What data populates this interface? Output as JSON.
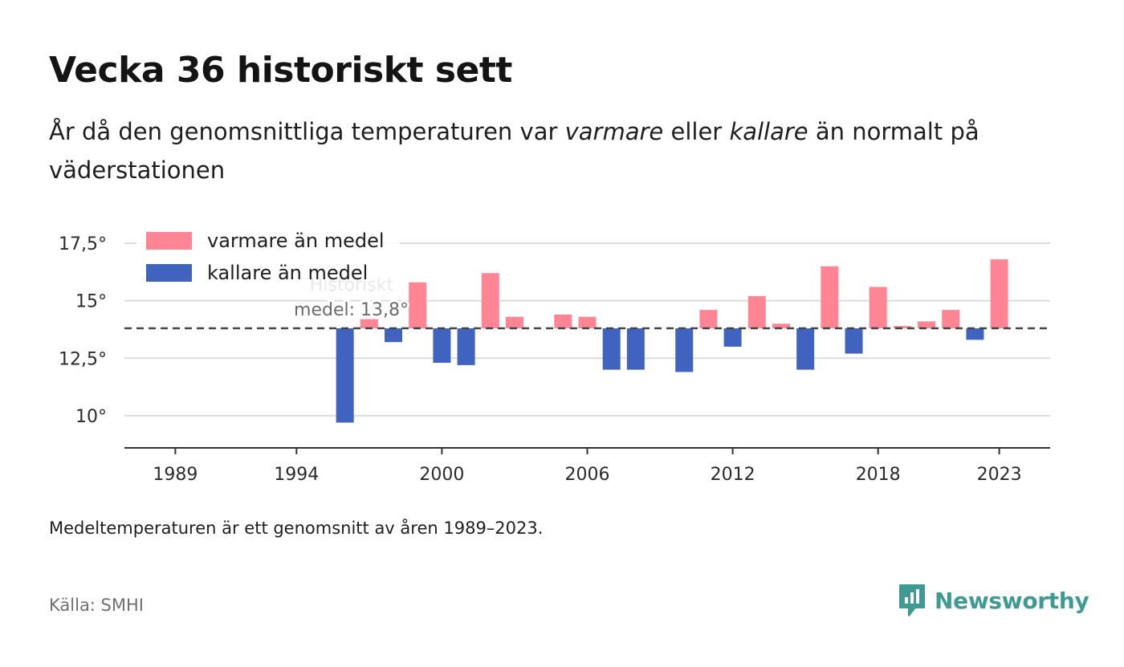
{
  "header": {
    "title": "Vecka 36 historiskt sett",
    "subtitle_pre": "År då den genomsnittliga temperaturen var ",
    "subtitle_warm": "varmare",
    "subtitle_mid": " eller ",
    "subtitle_cold": "kallare",
    "subtitle_post": " än normalt på väderstationen"
  },
  "footer": {
    "note": "Medeltemperaturen är ett genomsnitt av åren 1989–2023.",
    "source": "Källa: SMHI",
    "brand": "Newsworthy"
  },
  "colors": {
    "warm": "#ff8595",
    "cold": "#4163c0",
    "brand": "#3f9a94",
    "grid": "#dcdcdc",
    "axis": "#333333",
    "reference_line": "#444444"
  },
  "chart_data": {
    "type": "bar",
    "baseline": 13.8,
    "reference_line": {
      "value": 13.8,
      "label_line1": "Historiskt",
      "label_line2": "medel: 13,8°"
    },
    "ylim": [
      8.6,
      18.2
    ],
    "yticks": [
      {
        "value": 10,
        "label": "10°"
      },
      {
        "value": 12.5,
        "label": "12,5°"
      },
      {
        "value": 15,
        "label": "15°"
      },
      {
        "value": 17.5,
        "label": "17,5°"
      }
    ],
    "xlim": [
      1986.9,
      2025.1
    ],
    "xticks": [
      {
        "value": 1989,
        "label": "1989"
      },
      {
        "value": 1994,
        "label": "1994"
      },
      {
        "value": 2000,
        "label": "2000"
      },
      {
        "value": 2006,
        "label": "2006"
      },
      {
        "value": 2012,
        "label": "2012"
      },
      {
        "value": 2018,
        "label": "2018"
      },
      {
        "value": 2023,
        "label": "2023"
      }
    ],
    "legend": [
      {
        "key": "warm",
        "label": "varmare än medel"
      },
      {
        "key": "cold",
        "label": "kallare än medel"
      }
    ],
    "legend_position": "top-left",
    "grid": true,
    "years": [
      1996,
      1997,
      1998,
      1999,
      2000,
      2001,
      2002,
      2003,
      2005,
      2006,
      2007,
      2008,
      2010,
      2011,
      2012,
      2013,
      2014,
      2015,
      2016,
      2017,
      2018,
      2019,
      2020,
      2021,
      2022,
      2023
    ],
    "values": [
      9.7,
      14.2,
      13.2,
      15.8,
      12.3,
      12.2,
      16.2,
      14.3,
      14.4,
      14.3,
      12.0,
      12.0,
      11.9,
      14.6,
      13.0,
      15.2,
      14.0,
      12.0,
      16.5,
      12.7,
      15.6,
      13.9,
      14.1,
      14.6,
      13.3,
      16.8
    ]
  }
}
